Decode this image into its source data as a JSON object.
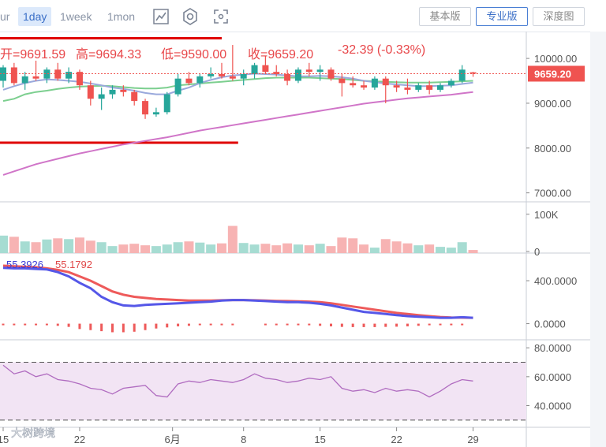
{
  "toolbar": {
    "intervals": [
      "ur",
      "1day",
      "1week",
      "1mon"
    ],
    "active_interval": "1day",
    "view_buttons": [
      "基本版",
      "专业版",
      "深度图"
    ],
    "active_view": "专业版"
  },
  "ohlc": {
    "open_label": "开=9691.59",
    "high_label": "高=9694.33",
    "low_label": "低=9590.00",
    "close_label": "收=9659.20",
    "change_label": "-32.39 (-0.33%)"
  },
  "colors": {
    "up": "#26a69a",
    "down": "#ef5350",
    "red_line": "#e00000",
    "ma_green": "#7ccf8f",
    "ma_blue": "#9aa9dc",
    "ma_purple": "#d075c8",
    "macd_blue": "#5557e8",
    "macd_red": "#ee5a5a",
    "rsi": "#b06cc0"
  },
  "chart_data": [
    {
      "type": "candlestick",
      "panel": "price",
      "ylim": [
        6800,
        10600
      ],
      "y_ticks": [
        "10000.00",
        "9000.00",
        "8000.00",
        "7000.00"
      ],
      "last_price_label": "9659.20",
      "candles": [
        [
          9500,
          9850,
          9350,
          9800
        ],
        [
          9800,
          9900,
          9400,
          9450
        ],
        [
          9450,
          9700,
          9300,
          9600
        ],
        [
          9600,
          9950,
          9500,
          9550
        ],
        [
          9550,
          9800,
          9450,
          9750
        ],
        [
          9750,
          9900,
          9500,
          9550
        ],
        [
          9550,
          9800,
          9450,
          9700
        ],
        [
          9700,
          9750,
          9300,
          9400
        ],
        [
          9400,
          9500,
          8950,
          9100
        ],
        [
          9100,
          9350,
          8850,
          9200
        ],
        [
          9200,
          9400,
          9100,
          9300
        ],
        [
          9300,
          9400,
          9150,
          9250
        ],
        [
          9250,
          9300,
          8950,
          9050
        ],
        [
          9050,
          9100,
          8650,
          8750
        ],
        [
          8750,
          8900,
          8700,
          8800
        ],
        [
          8800,
          9250,
          8750,
          9200
        ],
        [
          9200,
          9650,
          9150,
          9550
        ],
        [
          9550,
          9700,
          9400,
          9450
        ],
        [
          9450,
          9650,
          9350,
          9600
        ],
        [
          9600,
          9800,
          9550,
          9650
        ],
        [
          9650,
          9900,
          9550,
          9600
        ],
        [
          9600,
          10300,
          9500,
          9550
        ],
        [
          9550,
          9750,
          9400,
          9650
        ],
        [
          9650,
          9900,
          9550,
          9850
        ],
        [
          9850,
          10050,
          9650,
          9700
        ],
        [
          9700,
          9850,
          9600,
          9650
        ],
        [
          9650,
          9750,
          9400,
          9500
        ],
        [
          9500,
          9800,
          9450,
          9750
        ],
        [
          9750,
          9900,
          9600,
          9700
        ],
        [
          9700,
          9850,
          9500,
          9750
        ],
        [
          9750,
          9800,
          9500,
          9550
        ],
        [
          9550,
          9650,
          9150,
          9450
        ],
        [
          9450,
          9600,
          9350,
          9400
        ],
        [
          9400,
          9500,
          9300,
          9350
        ],
        [
          9350,
          9600,
          9300,
          9550
        ],
        [
          9550,
          9600,
          9000,
          9400
        ],
        [
          9400,
          9500,
          9250,
          9350
        ],
        [
          9350,
          9550,
          9200,
          9300
        ],
        [
          9300,
          9450,
          9250,
          9400
        ],
        [
          9400,
          9500,
          9200,
          9300
        ],
        [
          9300,
          9450,
          9250,
          9400
        ],
        [
          9400,
          9550,
          9350,
          9500
        ],
        [
          9500,
          9850,
          9450,
          9750
        ],
        [
          9690,
          9700,
          9590,
          9660
        ]
      ],
      "ma_green": [
        9050,
        9100,
        9200,
        9250,
        9280,
        9320,
        9350,
        9370,
        9380,
        9390,
        9380,
        9360,
        9340,
        9330,
        9330,
        9350,
        9400,
        9420,
        9440,
        9460,
        9480,
        9500,
        9520,
        9540,
        9560,
        9570,
        9570,
        9570,
        9570,
        9560,
        9550,
        9540,
        9520,
        9500,
        9490,
        9480,
        9470,
        9460,
        9460,
        9460,
        9470,
        9480,
        9490,
        9500
      ],
      "ma_blue": [
        9300,
        9380,
        9450,
        9500,
        9530,
        9520,
        9500,
        9480,
        9440,
        9400,
        9350,
        9320,
        9280,
        9230,
        9200,
        9200,
        9280,
        9350,
        9450,
        9520,
        9580,
        9620,
        9640,
        9660,
        9650,
        9640,
        9620,
        9600,
        9600,
        9610,
        9600,
        9580,
        9550,
        9500,
        9470,
        9440,
        9420,
        9400,
        9380,
        9380,
        9390,
        9400,
        9430,
        9460
      ],
      "ma_purple": [
        7400,
        7480,
        7560,
        7640,
        7700,
        7760,
        7820,
        7880,
        7930,
        7980,
        8030,
        8080,
        8120,
        8160,
        8200,
        8240,
        8290,
        8340,
        8390,
        8430,
        8470,
        8510,
        8550,
        8590,
        8630,
        8670,
        8710,
        8750,
        8790,
        8830,
        8870,
        8910,
        8950,
        8990,
        9020,
        9050,
        9080,
        9110,
        9130,
        9150,
        9170,
        9190,
        9220,
        9250
      ],
      "red_lines": [
        {
          "x0": 0,
          "x1": 20,
          "y": 10450
        },
        {
          "x0": 0,
          "x1": 21.5,
          "y": 8120
        }
      ]
    },
    {
      "type": "bar",
      "panel": "volume",
      "ylim": [
        0,
        130000
      ],
      "y_ticks": [
        "100K",
        "0"
      ],
      "values": [
        45000,
        42000,
        30000,
        28000,
        35000,
        38000,
        36000,
        40000,
        32000,
        28000,
        18000,
        22000,
        24000,
        20000,
        18000,
        22000,
        28000,
        30000,
        27000,
        22000,
        25000,
        70000,
        26000,
        22000,
        24000,
        20000,
        25000,
        22000,
        20000,
        24000,
        18000,
        40000,
        38000,
        22000,
        14000,
        36000,
        30000,
        25000,
        20000,
        22000,
        16000,
        14000,
        28000,
        8000
      ]
    },
    {
      "type": "line",
      "panel": "macd",
      "ylim": [
        -150,
        650
      ],
      "y_ticks": [
        "400.0000",
        "0.0000"
      ],
      "dif_label": "55.3926",
      "dea_label": "55.1792",
      "dif": [
        520,
        515,
        515,
        510,
        505,
        480,
        440,
        380,
        330,
        250,
        200,
        170,
        165,
        175,
        180,
        185,
        190,
        195,
        200,
        205,
        215,
        220,
        220,
        215,
        210,
        205,
        200,
        200,
        195,
        185,
        170,
        150,
        130,
        110,
        100,
        90,
        80,
        70,
        65,
        60,
        55,
        55,
        60,
        55
      ],
      "dea": [
        540,
        535,
        530,
        525,
        515,
        500,
        480,
        440,
        400,
        350,
        300,
        270,
        250,
        240,
        230,
        225,
        220,
        215,
        215,
        215,
        218,
        220,
        220,
        218,
        215,
        212,
        210,
        208,
        205,
        200,
        190,
        175,
        160,
        145,
        130,
        115,
        100,
        90,
        80,
        70,
        62,
        58,
        56,
        55
      ],
      "hist": [
        -10,
        -10,
        -8,
        -6,
        -6,
        -20,
        -30,
        -50,
        -60,
        -70,
        -80,
        -80,
        -75,
        -60,
        -45,
        -35,
        -25,
        -20,
        -12,
        -8,
        -4,
        -2,
        0,
        0,
        -1,
        -2,
        -6,
        -10,
        -15,
        -20,
        -25,
        -30,
        -32,
        -32,
        -32,
        -30,
        -28,
        -25,
        -20,
        -15,
        -10,
        -6,
        -3,
        0
      ]
    },
    {
      "type": "line",
      "panel": "rsi",
      "ylim": [
        25,
        85
      ],
      "y_ticks": [
        "80.0000",
        "60.0000",
        "40.0000"
      ],
      "band": [
        30,
        70
      ],
      "values": [
        68,
        62,
        64,
        60,
        62,
        58,
        57,
        55,
        52,
        51,
        48,
        52,
        53,
        54,
        47,
        46,
        55,
        57,
        56,
        58,
        57,
        56,
        58,
        62,
        59,
        58,
        56,
        57,
        59,
        58,
        60,
        52,
        50,
        51,
        49,
        52,
        50,
        51,
        50,
        46,
        50,
        55,
        58,
        57
      ]
    }
  ],
  "x_axis": {
    "labels": [
      "15",
      "22",
      "6月",
      "8",
      "15",
      "22",
      "29"
    ],
    "positions": [
      0,
      7,
      15.5,
      22,
      29,
      36,
      43
    ]
  },
  "watermark": "大树跨境"
}
